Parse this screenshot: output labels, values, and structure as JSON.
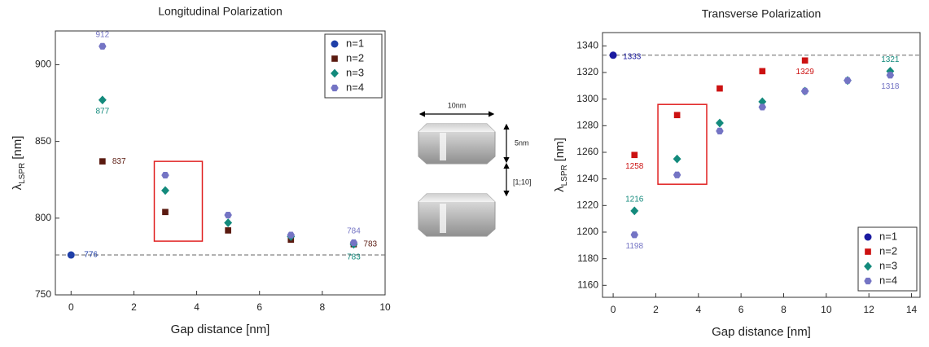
{
  "chart_data": [
    {
      "type": "scatter",
      "title": "Longitudinal Polarization",
      "x_label": "Gap distance [nm]",
      "y_label": [
        "λ",
        "LSPR",
        "[nm]"
      ],
      "xlim": [
        -0.5,
        10
      ],
      "ylim": [
        750,
        922
      ],
      "xticks": [
        0,
        2,
        4,
        6,
        8,
        10
      ],
      "yticks": [
        750,
        800,
        850,
        900
      ],
      "reference_line": 776,
      "legend": "upper right",
      "highlight_box": {
        "xlim": [
          2.65,
          4.18
        ],
        "ylim": [
          785,
          837
        ]
      },
      "series": [
        {
          "name": "n=1",
          "color": "#1f3fa8",
          "marker": "circle",
          "x": [
            0
          ],
          "values": [
            776
          ],
          "value_labels": [
            "776"
          ]
        },
        {
          "name": "n=2",
          "color": "#5a1a10",
          "marker": "square",
          "x": [
            1,
            3,
            5,
            7,
            9
          ],
          "values": [
            837,
            804,
            792,
            786,
            783
          ],
          "value_labels": [
            "837",
            null,
            null,
            null,
            "783"
          ]
        },
        {
          "name": "n=3",
          "color": "#138a7c",
          "marker": "diamond",
          "x": [
            1,
            3,
            5,
            7,
            9
          ],
          "values": [
            877,
            818,
            797,
            788,
            783
          ],
          "value_labels": [
            "877",
            null,
            null,
            null,
            "783"
          ]
        },
        {
          "name": "n=4",
          "color": "#7474c4",
          "marker": "hexagon",
          "x": [
            1,
            3,
            5,
            7,
            9
          ],
          "values": [
            912,
            828,
            802,
            789,
            784
          ],
          "value_labels": [
            "912",
            null,
            null,
            null,
            "784"
          ]
        }
      ]
    },
    {
      "type": "scatter",
      "title": "Transverse Polarization",
      "x_label": "Gap distance [nm]",
      "y_label": [
        "λ",
        "LSPR",
        "[nm]"
      ],
      "xlim": [
        -0.5,
        14.4
      ],
      "ylim": [
        1151,
        1350
      ],
      "xticks": [
        0,
        2,
        4,
        6,
        8,
        10,
        12,
        14
      ],
      "yticks": [
        1160,
        1180,
        1200,
        1220,
        1240,
        1260,
        1280,
        1300,
        1320,
        1340
      ],
      "reference_line": 1333,
      "legend": "lower right",
      "highlight_box": {
        "xlim": [
          2.1,
          4.39
        ],
        "ylim": [
          1236,
          1296
        ]
      },
      "series": [
        {
          "name": "n=1",
          "color": "#1a1aa0",
          "marker": "circle",
          "x": [
            0
          ],
          "values": [
            1333
          ],
          "value_labels": [
            "1333"
          ]
        },
        {
          "name": "n=2",
          "color": "#cc1111",
          "marker": "square",
          "x": [
            1,
            3,
            5,
            7,
            9
          ],
          "values": [
            1258,
            1288,
            1308,
            1321,
            1329
          ],
          "value_labels": [
            "1258",
            null,
            null,
            null,
            "1329"
          ]
        },
        {
          "name": "n=3",
          "color": "#138a7c",
          "marker": "diamond",
          "x": [
            1,
            3,
            5,
            7,
            9,
            11,
            13
          ],
          "values": [
            1216,
            1255,
            1282,
            1298,
            1306,
            1314,
            1321
          ],
          "value_labels": [
            "1216",
            null,
            null,
            null,
            null,
            null,
            "1321"
          ]
        },
        {
          "name": "n=4",
          "color": "#7474c4",
          "marker": "hexagon",
          "x": [
            1,
            3,
            5,
            7,
            9,
            11,
            13
          ],
          "values": [
            1198,
            1243,
            1276,
            1294,
            1306,
            1314,
            1318
          ],
          "value_labels": [
            "1198",
            null,
            null,
            null,
            null,
            null,
            "1318"
          ]
        }
      ]
    }
  ],
  "diagram": {
    "width_label": "10nm",
    "height_label": "5nm",
    "gap_label": "[1;10]"
  }
}
